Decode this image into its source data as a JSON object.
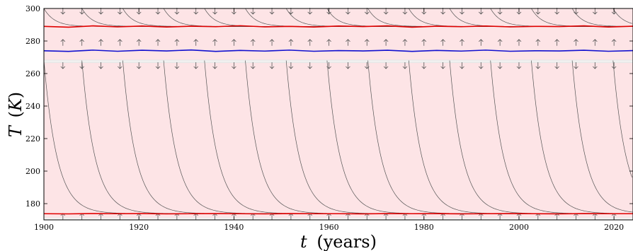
{
  "chart_data": {
    "type": "line",
    "xlabel": {
      "var": "t",
      "unit": "(years)"
    },
    "ylabel": {
      "var": "T",
      "unit": "K"
    },
    "xlim": [
      1900,
      2024
    ],
    "ylim": [
      170,
      300
    ],
    "xticks": [
      1900,
      1920,
      1940,
      1960,
      1980,
      2000,
      2020
    ],
    "yticks": [
      180,
      200,
      220,
      240,
      260,
      280,
      300
    ],
    "grid": false,
    "legend": "none",
    "background_bands": [
      {
        "from": 266.5,
        "to": 268.5,
        "fill": "#e4e4e4"
      },
      {
        "from": 170,
        "to": 171.5,
        "fill": "#e4e4e4"
      }
    ],
    "series": [
      {
        "role": "upper-equilibrium",
        "color": "#e00000",
        "values": [
          289.0,
          288.5,
          289.3,
          288.7,
          289.2,
          288.6,
          289.1,
          288.8,
          289.4,
          288.7,
          289.0,
          288.6,
          289.2,
          288.9,
          289.3,
          288.5,
          289.1,
          288.8,
          289.2,
          288.7,
          289.0,
          288.9,
          289.3,
          288.6,
          289.1
        ]
      },
      {
        "role": "unstable-equilibrium",
        "color": "#1010d0",
        "values": [
          274.0,
          273.6,
          274.4,
          273.7,
          274.3,
          273.9,
          274.5,
          273.6,
          274.2,
          273.8,
          274.4,
          273.7,
          274.1,
          273.9,
          274.3,
          273.6,
          274.2,
          273.8,
          274.4,
          273.7,
          274.0,
          273.9,
          274.3,
          273.7,
          274.1
        ]
      },
      {
        "role": "lower-equilibrium",
        "color": "#e00000",
        "values": [
          173.8,
          173.7,
          173.9,
          173.8,
          173.9,
          173.7,
          173.8,
          173.9,
          173.8,
          173.7,
          173.9,
          173.8,
          173.8,
          173.7,
          173.9,
          173.8,
          173.9,
          173.7,
          173.8,
          173.9,
          173.8,
          173.7,
          173.9,
          173.8,
          173.8
        ]
      }
    ],
    "trajectories": {
      "color": "#555555",
      "upper_starts": [
        1900,
        1908,
        1916.6,
        1925.2,
        1933.8,
        1942.4,
        1951,
        1959.6,
        1968.2,
        1976.8,
        1985.4,
        1994,
        2002.6,
        2011.2,
        2019.8
      ],
      "upper_start_T": 300,
      "upper_rate_per_year": 0.45,
      "lower_starts": [
        1900,
        1908,
        1916.6,
        1925.2,
        1933.8,
        1942.4,
        1951,
        1959.6,
        1968.2,
        1976.8,
        1985.4,
        1994,
        2002.6,
        2011.2,
        2019.8
      ],
      "lower_start_T": 268,
      "lower_rate_per_year": 0.36
    },
    "arrows": {
      "color": "#555555",
      "x": [
        1904,
        1908,
        1912,
        1916,
        1920,
        1924,
        1928,
        1932,
        1936,
        1940,
        1944,
        1948,
        1952,
        1956,
        1960,
        1964,
        1968,
        1972,
        1976,
        1980,
        1984,
        1988,
        1992,
        1996,
        2000,
        2004,
        2008,
        2012,
        2016,
        2020
      ],
      "rows": [
        {
          "T": 298.5,
          "dir": "down"
        },
        {
          "T": 279.0,
          "dir": "up"
        },
        {
          "T": 265.0,
          "dir": "down"
        },
        {
          "T": 172.0,
          "dir": "up"
        }
      ]
    }
  }
}
